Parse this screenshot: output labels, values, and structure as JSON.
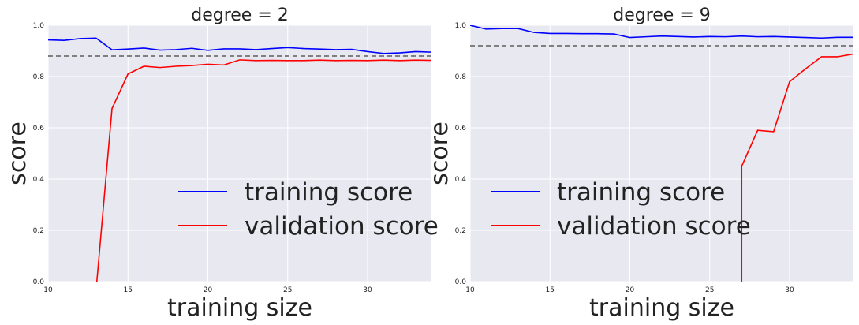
{
  "figure": {
    "background": "#ffffff",
    "plot_background": "#e8e8f0",
    "grid_color": "#ffffff",
    "baseline_color": "#808080"
  },
  "chart_data": [
    {
      "type": "line",
      "title": "degree = 2",
      "xlabel": "training size",
      "ylabel": "score",
      "xlim": [
        10,
        34
      ],
      "ylim": [
        0,
        1
      ],
      "xticks": [
        "10",
        "15",
        "20",
        "25",
        "30"
      ],
      "yticks": [
        "0.0",
        "0.2",
        "0.4",
        "0.6",
        "0.8",
        "1.0"
      ],
      "grid": true,
      "legend": "lower-right",
      "baseline": 0.88,
      "series": [
        {
          "name": "training score",
          "color": "#0000ff",
          "x": [
            10,
            11,
            12,
            13,
            14,
            15,
            16,
            17,
            18,
            19,
            20,
            21,
            22,
            23,
            24,
            25,
            26,
            27,
            28,
            29,
            30,
            31,
            32,
            33,
            34
          ],
          "values": [
            0.943,
            0.941,
            0.948,
            0.95,
            0.904,
            0.907,
            0.911,
            0.903,
            0.905,
            0.91,
            0.902,
            0.908,
            0.908,
            0.905,
            0.909,
            0.913,
            0.909,
            0.907,
            0.905,
            0.906,
            0.897,
            0.89,
            0.892,
            0.897,
            0.895
          ]
        },
        {
          "name": "validation score",
          "color": "#ff0000",
          "x": [
            13.05,
            14,
            15,
            16,
            17,
            18,
            19,
            20,
            21,
            22,
            23,
            24,
            25,
            26,
            27,
            28,
            29,
            30,
            31,
            32,
            33,
            34
          ],
          "values": [
            0.0,
            0.675,
            0.81,
            0.84,
            0.835,
            0.84,
            0.843,
            0.848,
            0.845,
            0.865,
            0.862,
            0.863,
            0.862,
            0.862,
            0.864,
            0.862,
            0.863,
            0.862,
            0.864,
            0.862,
            0.864,
            0.863
          ]
        }
      ]
    },
    {
      "type": "line",
      "title": "degree = 9",
      "xlabel": "training size",
      "ylabel": "score",
      "xlim": [
        10,
        34
      ],
      "ylim": [
        0,
        1
      ],
      "xticks": [
        "10",
        "15",
        "20",
        "25",
        "30"
      ],
      "yticks": [
        "0.0",
        "0.2",
        "0.4",
        "0.6",
        "0.8",
        "1.0"
      ],
      "grid": true,
      "legend": "lower-left",
      "baseline": 0.92,
      "series": [
        {
          "name": "training score",
          "color": "#0000ff",
          "x": [
            10,
            11,
            12,
            13,
            14,
            15,
            16,
            17,
            18,
            19,
            20,
            21,
            22,
            23,
            24,
            25,
            26,
            27,
            28,
            29,
            30,
            31,
            32,
            33,
            34
          ],
          "values": [
            1.0,
            0.985,
            0.987,
            0.987,
            0.972,
            0.968,
            0.968,
            0.967,
            0.967,
            0.966,
            0.952,
            0.955,
            0.958,
            0.956,
            0.954,
            0.956,
            0.955,
            0.958,
            0.955,
            0.956,
            0.954,
            0.952,
            0.95,
            0.953,
            0.953
          ]
        },
        {
          "name": "validation score",
          "color": "#ff0000",
          "x": [
            27,
            27,
            28,
            29,
            30,
            31,
            32,
            33,
            34
          ],
          "values": [
            0.0,
            0.45,
            0.59,
            0.585,
            0.78,
            0.83,
            0.877,
            0.877,
            0.888
          ]
        }
      ]
    }
  ]
}
